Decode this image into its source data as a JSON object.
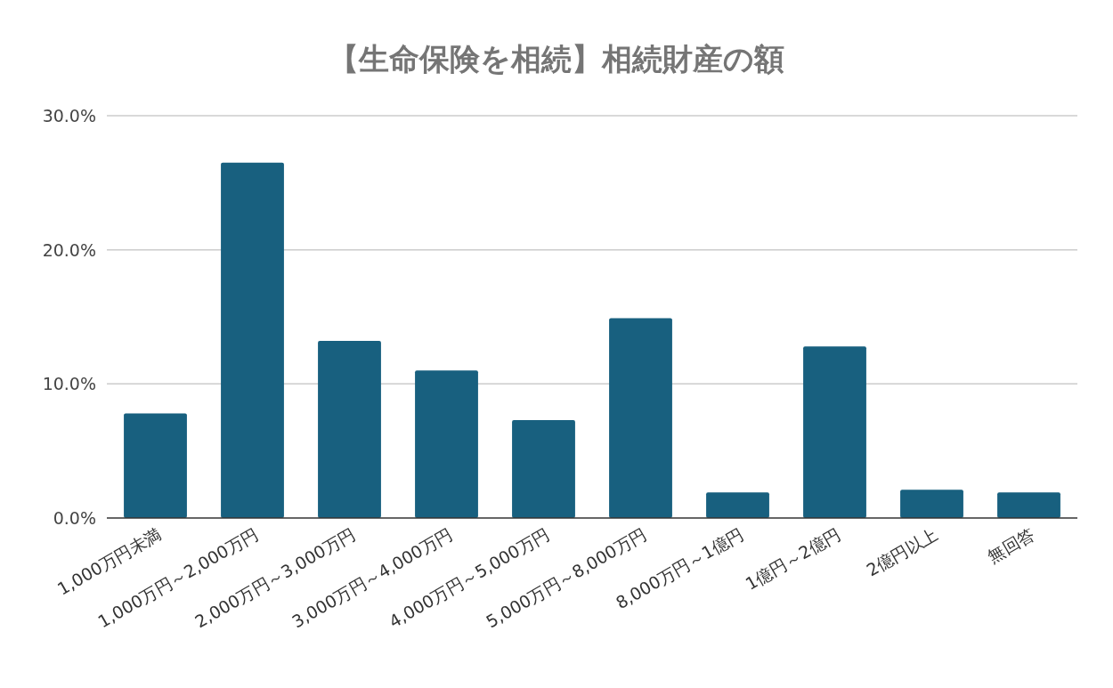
{
  "chart_data": {
    "type": "bar",
    "title": "【生命保険を相続】相続財産の額",
    "categories": [
      "1,000万円未満",
      "1,000万円～2,000万円",
      "2,000万円～3,000万円",
      "3,000万円～4,000万円",
      "4,000万円～5,000万円",
      "5,000万円～8,000万円",
      "8,000万円～1億円",
      "1億円～2億円",
      "2億円以上",
      "無回答"
    ],
    "values": [
      7.8,
      26.5,
      13.2,
      11.0,
      7.3,
      14.9,
      1.9,
      12.8,
      2.1,
      1.9
    ],
    "color": "#18607f",
    "ylim": [
      0,
      30
    ],
    "yticks": [
      {
        "value": 0,
        "label": "0.0%"
      },
      {
        "value": 10,
        "label": "10.0%"
      },
      {
        "value": 20,
        "label": "20.0%"
      },
      {
        "value": 30,
        "label": "30.0%"
      }
    ],
    "grid": "y"
  }
}
